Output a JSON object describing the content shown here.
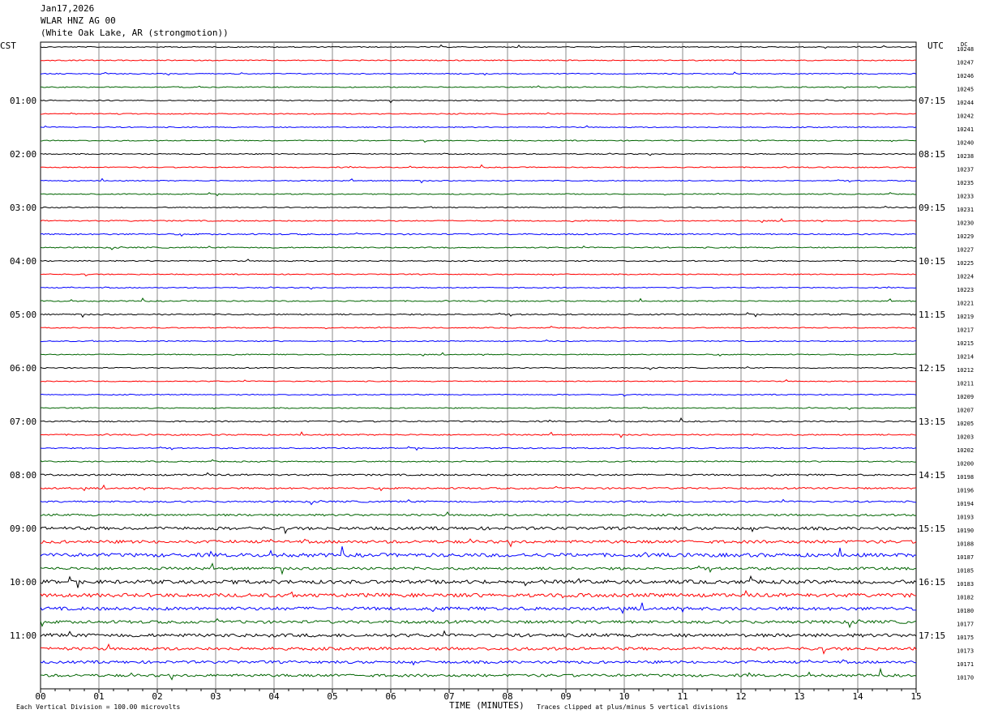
{
  "header": {
    "date": "Jan17,2026",
    "station": "WLAR HNZ AG 00",
    "location": "(White Oak Lake, AR (strongmotion))"
  },
  "chart_data": {
    "type": "line",
    "title": "Jan17,2026",
    "left_axis_label": "CST",
    "right_axis_label": "UTC",
    "dc_label": "DC",
    "xlabel": "TIME (MINUTES)",
    "xlim": [
      0,
      15
    ],
    "x_ticks": [
      "00",
      "01",
      "02",
      "03",
      "04",
      "05",
      "06",
      "07",
      "08",
      "09",
      "10",
      "11",
      "12",
      "13",
      "14",
      "15"
    ],
    "cst_hours": [
      "01:00",
      "02:00",
      "03:00",
      "04:00",
      "05:00",
      "06:00",
      "07:00",
      "08:00",
      "09:00",
      "10:00",
      "11:00"
    ],
    "utc_hours": [
      "07:15",
      "08:15",
      "09:15",
      "10:15",
      "11:15",
      "12:15",
      "13:15",
      "14:15",
      "15:15",
      "16:15",
      "17:15"
    ],
    "trace_colors": [
      "#000000",
      "#ff0000",
      "#0000ff",
      "#006400"
    ],
    "dc_offsets": [
      10248,
      10247,
      10246,
      10245,
      10244,
      10242,
      10241,
      10240,
      10238,
      10237,
      10235,
      10233,
      10231,
      10230,
      10229,
      10227,
      10225,
      10224,
      10223,
      10221,
      10219,
      10217,
      10215,
      10214,
      10212,
      10211,
      10209,
      10207,
      10205,
      10203,
      10202,
      10200,
      10198,
      10196,
      10194,
      10193,
      10190,
      10188,
      10187,
      10185,
      10183,
      10182,
      10180,
      10177,
      10175,
      10173,
      10171,
      10170
    ],
    "noise_level": [
      0.6,
      0.6,
      0.6,
      0.6,
      0.6,
      0.6,
      0.6,
      0.6,
      0.6,
      0.6,
      0.6,
      0.6,
      0.6,
      0.7,
      0.8,
      0.7,
      0.7,
      0.6,
      0.6,
      0.7,
      0.8,
      0.6,
      0.6,
      0.6,
      0.6,
      0.6,
      0.6,
      0.6,
      0.8,
      0.8,
      0.7,
      0.7,
      1.0,
      1.0,
      1.0,
      1.2,
      1.8,
      1.8,
      2.2,
      1.6,
      2.2,
      2.2,
      2.0,
      1.8,
      2.0,
      1.8,
      1.6,
      1.6
    ],
    "footer_left": "Each Vertical Division =  100.00 microvolts",
    "footer_right": "Traces clipped at plus/minus 5 vertical divisions"
  }
}
